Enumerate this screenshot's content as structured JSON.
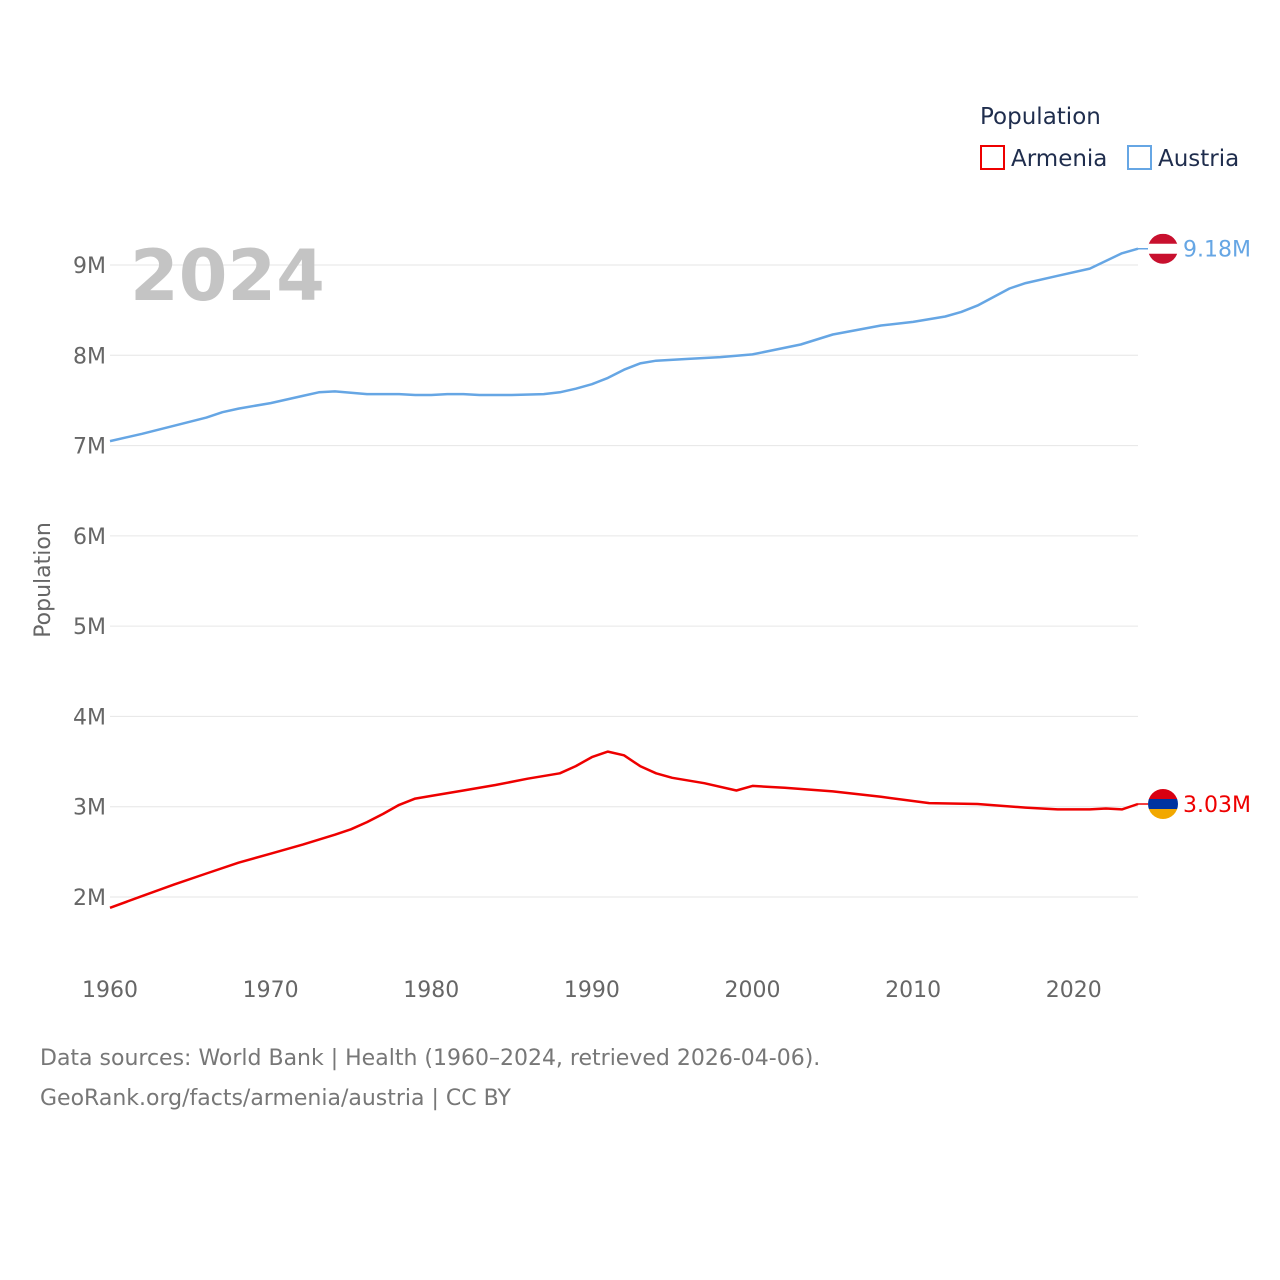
{
  "chart_data": {
    "type": "line",
    "title": "",
    "year_label": "2024",
    "ylabel": "Population",
    "xlabel": "",
    "xlim": [
      1960,
      2024
    ],
    "ylim": [
      1500000,
      9500000
    ],
    "grid": true,
    "y_ticks": [
      {
        "value": 2000000,
        "label": "2M"
      },
      {
        "value": 3000000,
        "label": "3M"
      },
      {
        "value": 4000000,
        "label": "4M"
      },
      {
        "value": 5000000,
        "label": "5M"
      },
      {
        "value": 6000000,
        "label": "6M"
      },
      {
        "value": 7000000,
        "label": "7M"
      },
      {
        "value": 8000000,
        "label": "8M"
      },
      {
        "value": 9000000,
        "label": "9M"
      }
    ],
    "x_ticks": [
      {
        "value": 1960,
        "label": "1960"
      },
      {
        "value": 1970,
        "label": "1970"
      },
      {
        "value": 1980,
        "label": "1980"
      },
      {
        "value": 1990,
        "label": "1990"
      },
      {
        "value": 2000,
        "label": "2000"
      },
      {
        "value": 2010,
        "label": "2010"
      },
      {
        "value": 2020,
        "label": "2020"
      }
    ],
    "legend": {
      "title": "Population",
      "placement": "top-right",
      "entries": [
        "Armenia",
        "Austria"
      ]
    },
    "series": [
      {
        "name": "Armenia",
        "color": "#ee0000",
        "end_label": "3.03M",
        "flag": "armenia-flag",
        "points": [
          [
            1960,
            1880000
          ],
          [
            1962,
            2010000
          ],
          [
            1964,
            2140000
          ],
          [
            1966,
            2260000
          ],
          [
            1968,
            2380000
          ],
          [
            1970,
            2480000
          ],
          [
            1972,
            2580000
          ],
          [
            1974,
            2690000
          ],
          [
            1975,
            2750000
          ],
          [
            1976,
            2830000
          ],
          [
            1977,
            2920000
          ],
          [
            1978,
            3020000
          ],
          [
            1979,
            3090000
          ],
          [
            1980,
            3120000
          ],
          [
            1982,
            3180000
          ],
          [
            1984,
            3240000
          ],
          [
            1986,
            3310000
          ],
          [
            1988,
            3370000
          ],
          [
            1989,
            3450000
          ],
          [
            1990,
            3550000
          ],
          [
            1991,
            3610000
          ],
          [
            1992,
            3570000
          ],
          [
            1993,
            3450000
          ],
          [
            1994,
            3370000
          ],
          [
            1995,
            3320000
          ],
          [
            1997,
            3260000
          ],
          [
            1999,
            3180000
          ],
          [
            2000,
            3230000
          ],
          [
            2002,
            3210000
          ],
          [
            2005,
            3170000
          ],
          [
            2008,
            3110000
          ],
          [
            2011,
            3040000
          ],
          [
            2014,
            3030000
          ],
          [
            2017,
            2990000
          ],
          [
            2019,
            2970000
          ],
          [
            2021,
            2970000
          ],
          [
            2022,
            2980000
          ],
          [
            2023,
            2970000
          ],
          [
            2024,
            3030000
          ]
        ]
      },
      {
        "name": "Austria",
        "color": "#66a6e4",
        "end_label": "9.18M",
        "flag": "austria-flag",
        "points": [
          [
            1960,
            7050000
          ],
          [
            1962,
            7130000
          ],
          [
            1964,
            7220000
          ],
          [
            1966,
            7310000
          ],
          [
            1967,
            7370000
          ],
          [
            1968,
            7410000
          ],
          [
            1970,
            7470000
          ],
          [
            1972,
            7550000
          ],
          [
            1973,
            7590000
          ],
          [
            1974,
            7600000
          ],
          [
            1976,
            7570000
          ],
          [
            1978,
            7570000
          ],
          [
            1979,
            7560000
          ],
          [
            1980,
            7560000
          ],
          [
            1981,
            7570000
          ],
          [
            1982,
            7570000
          ],
          [
            1983,
            7560000
          ],
          [
            1985,
            7560000
          ],
          [
            1987,
            7570000
          ],
          [
            1988,
            7590000
          ],
          [
            1989,
            7630000
          ],
          [
            1990,
            7680000
          ],
          [
            1991,
            7750000
          ],
          [
            1992,
            7840000
          ],
          [
            1993,
            7910000
          ],
          [
            1994,
            7940000
          ],
          [
            1996,
            7960000
          ],
          [
            1998,
            7980000
          ],
          [
            2000,
            8010000
          ],
          [
            2003,
            8120000
          ],
          [
            2005,
            8230000
          ],
          [
            2008,
            8330000
          ],
          [
            2010,
            8370000
          ],
          [
            2012,
            8430000
          ],
          [
            2013,
            8480000
          ],
          [
            2014,
            8550000
          ],
          [
            2016,
            8740000
          ],
          [
            2017,
            8800000
          ],
          [
            2019,
            8880000
          ],
          [
            2021,
            8960000
          ],
          [
            2023,
            9130000
          ],
          [
            2024,
            9180000
          ]
        ]
      }
    ]
  },
  "footer": {
    "sources": "Data sources: World Bank | Health (1960–2024, retrieved 2026-04-06).",
    "attribution": "GeoRank.org/facts/armenia/austria | CC BY"
  }
}
